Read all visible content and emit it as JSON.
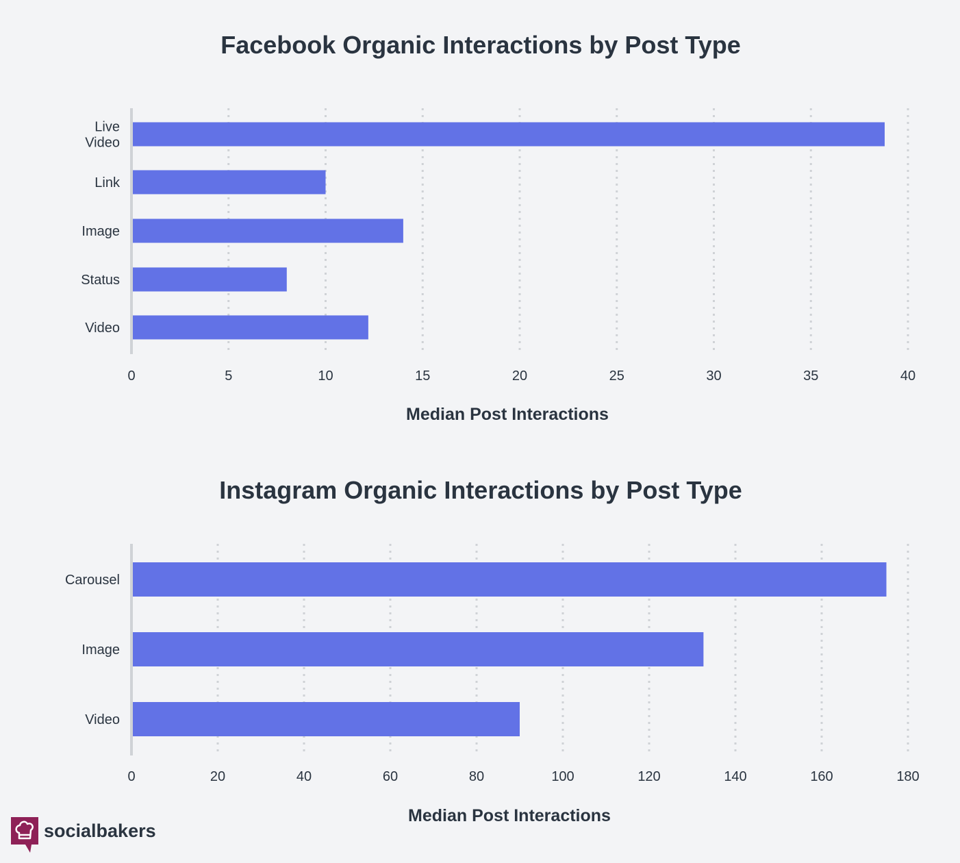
{
  "chart_data": [
    {
      "type": "bar",
      "orientation": "horizontal",
      "title": "Facebook Organic Interactions by Post Type",
      "xlabel": "Median Post Interactions",
      "ylabel": "",
      "categories": [
        [
          "Live",
          "Video"
        ],
        [
          "Link"
        ],
        [
          "Image"
        ],
        [
          "Status"
        ],
        [
          "Video"
        ]
      ],
      "values": [
        38.8,
        10,
        14,
        8,
        12.2
      ],
      "xlim": [
        0,
        40
      ],
      "ticks": [
        0,
        5,
        10,
        15,
        20,
        25,
        30,
        35,
        40
      ],
      "grid": true,
      "bar_color": "#6272e6"
    },
    {
      "type": "bar",
      "orientation": "horizontal",
      "title": "Instagram Organic Interactions by Post Type",
      "xlabel": "Median Post Interactions",
      "ylabel": "",
      "categories": [
        [
          "Carousel"
        ],
        [
          "Image"
        ],
        [
          "Video"
        ]
      ],
      "values": [
        175,
        132.6,
        90
      ],
      "xlim": [
        0,
        180
      ],
      "ticks": [
        0,
        20,
        40,
        60,
        80,
        100,
        120,
        140,
        160,
        180
      ],
      "grid": true,
      "bar_color": "#6272e6"
    }
  ],
  "branding": {
    "logo_text": "socialbakers",
    "logo_color": "#8e2157",
    "logo_icon": "chef-hat-icon"
  },
  "colors": {
    "background": "#f3f4f6",
    "text": "#2a3440",
    "grid": "#cfd2d6"
  }
}
